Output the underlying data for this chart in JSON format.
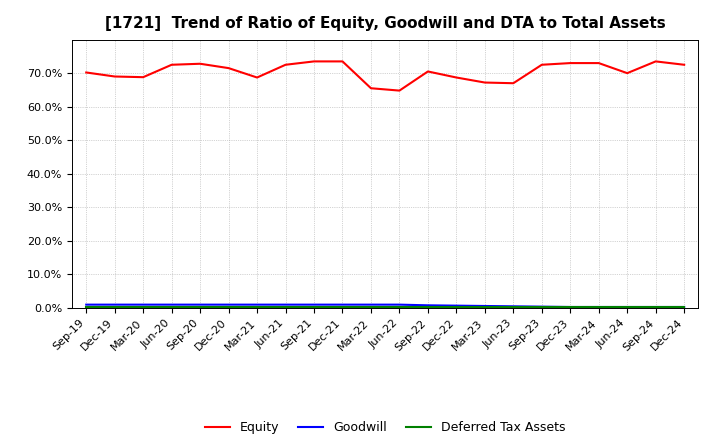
{
  "title": "[1721]  Trend of Ratio of Equity, Goodwill and DTA to Total Assets",
  "x_labels": [
    "Sep-19",
    "Dec-19",
    "Mar-20",
    "Jun-20",
    "Sep-20",
    "Dec-20",
    "Mar-21",
    "Jun-21",
    "Sep-21",
    "Dec-21",
    "Mar-22",
    "Jun-22",
    "Sep-22",
    "Dec-22",
    "Mar-23",
    "Jun-23",
    "Sep-23",
    "Dec-23",
    "Mar-24",
    "Jun-24",
    "Sep-24",
    "Dec-24"
  ],
  "equity": [
    70.2,
    69.0,
    68.8,
    72.5,
    72.8,
    71.5,
    68.7,
    72.5,
    73.5,
    73.5,
    65.5,
    64.8,
    70.5,
    68.7,
    67.2,
    67.0,
    72.5,
    73.0,
    73.0,
    70.0,
    73.5,
    72.5
  ],
  "goodwill": [
    1.0,
    1.0,
    1.0,
    1.0,
    1.0,
    1.0,
    1.0,
    1.0,
    1.0,
    1.0,
    1.0,
    1.0,
    0.8,
    0.7,
    0.6,
    0.5,
    0.4,
    0.3,
    0.3,
    0.3,
    0.3,
    0.3
  ],
  "dta": [
    0.3,
    0.3,
    0.3,
    0.3,
    0.3,
    0.3,
    0.3,
    0.3,
    0.3,
    0.3,
    0.3,
    0.3,
    0.3,
    0.3,
    0.3,
    0.3,
    0.3,
    0.3,
    0.3,
    0.3,
    0.3,
    0.3
  ],
  "equity_color": "#ff0000",
  "goodwill_color": "#0000ff",
  "dta_color": "#008000",
  "ylim": [
    0,
    80
  ],
  "yticks": [
    0,
    10,
    20,
    30,
    40,
    50,
    60,
    70
  ],
  "background_color": "#ffffff",
  "plot_bg_color": "#ffffff",
  "grid_color": "#aaaaaa",
  "legend_labels": [
    "Equity",
    "Goodwill",
    "Deferred Tax Assets"
  ],
  "title_fontsize": 11,
  "tick_fontsize": 8,
  "legend_fontsize": 9
}
